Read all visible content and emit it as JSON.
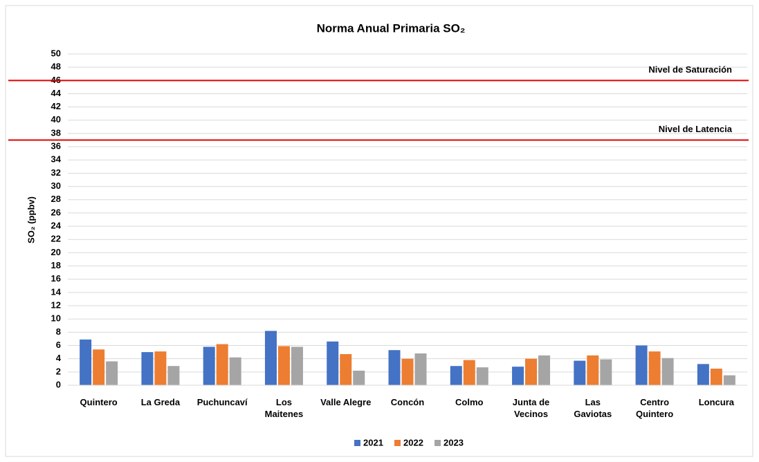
{
  "chart_data": {
    "type": "bar",
    "title": "Norma Anual Primaria SO₂",
    "y_label": "SO₂ (ppbv)",
    "categories": [
      "Quintero",
      "La Greda",
      "Puchuncaví",
      "Los Maitenes",
      "Valle Alegre",
      "Concón",
      "Colmo",
      "Junta de Vecinos",
      "Las Gaviotas",
      "Centro Quintero",
      "Loncura"
    ],
    "series": [
      {
        "name": "2021",
        "color": "#4472c4",
        "values": [
          6.9,
          5.0,
          5.8,
          8.2,
          6.6,
          5.3,
          2.9,
          2.8,
          3.7,
          6.0,
          3.2
        ]
      },
      {
        "name": "2022",
        "color": "#ed7d31",
        "values": [
          5.4,
          5.1,
          6.2,
          5.9,
          4.7,
          4.0,
          3.8,
          4.0,
          4.5,
          5.1,
          2.5
        ]
      },
      {
        "name": "2023",
        "color": "#a5a5a5",
        "values": [
          3.6,
          2.9,
          4.2,
          5.8,
          2.2,
          4.8,
          2.7,
          4.5,
          3.9,
          4.1,
          1.5
        ]
      }
    ],
    "reference_lines": [
      {
        "label": "Nivel de Saturación",
        "value": 46,
        "color": "#e00000"
      },
      {
        "label": "Nivel de Latencia",
        "value": 37,
        "color": "#e00000"
      }
    ],
    "ylim": [
      0,
      50
    ],
    "yticks": [
      0,
      2,
      4,
      6,
      8,
      10,
      12,
      14,
      16,
      18,
      20,
      22,
      24,
      26,
      28,
      30,
      32,
      34,
      36,
      38,
      40,
      42,
      44,
      46,
      48,
      50
    ],
    "grid": true,
    "legend": "bottom"
  }
}
